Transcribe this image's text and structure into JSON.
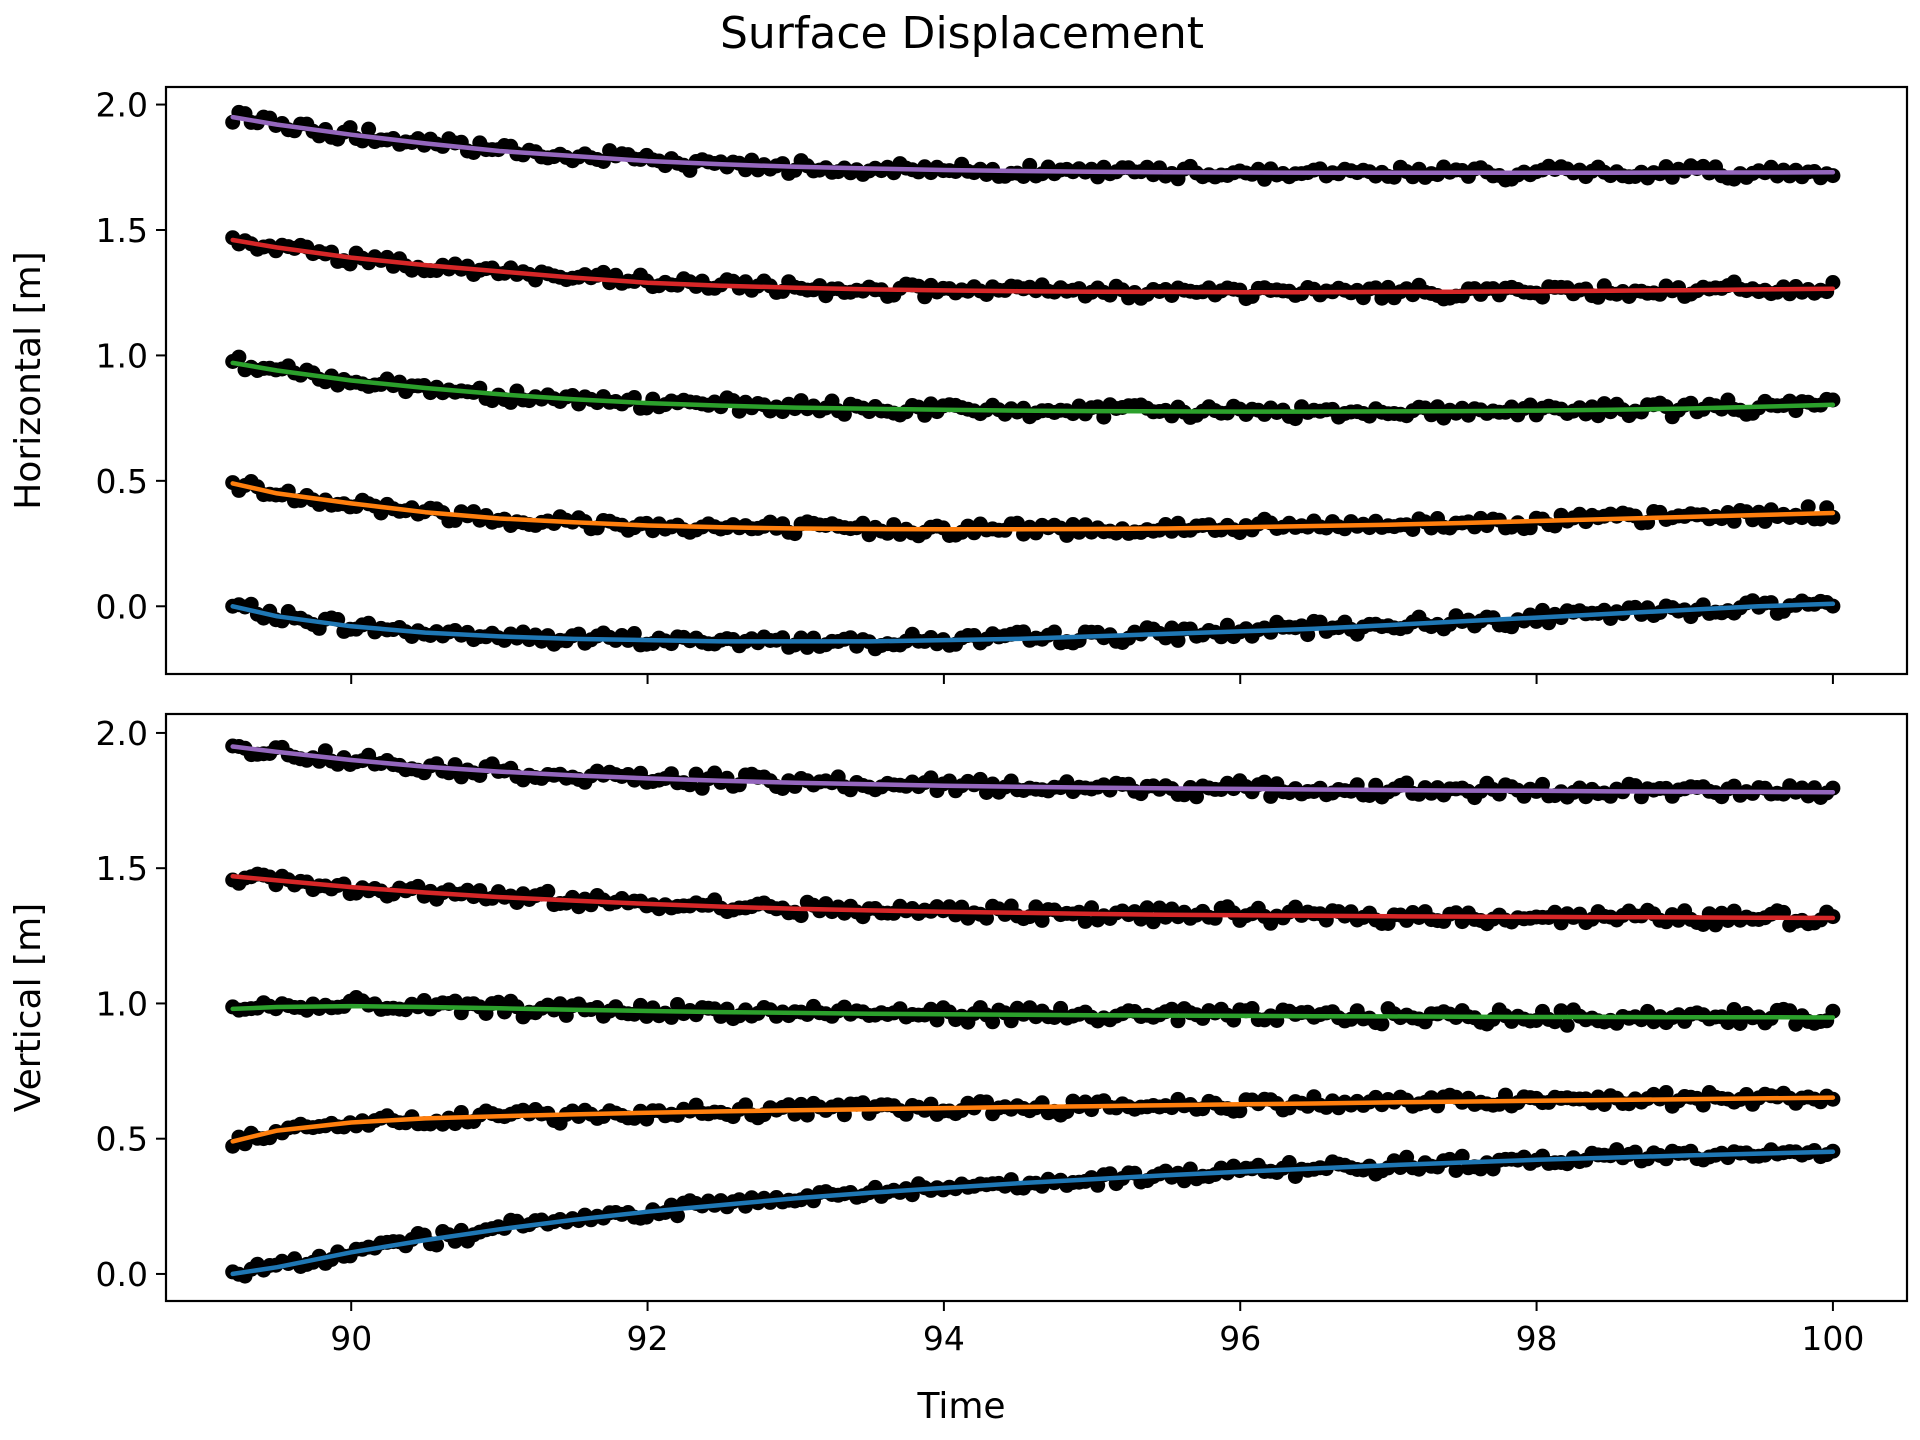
{
  "figure": {
    "title": "Surface Displacement"
  },
  "chart_data": [
    {
      "type": "line",
      "panel": "top",
      "title": "",
      "xlabel": "",
      "ylabel": "Horizontal [m]",
      "xlim": [
        88.75,
        100.5
      ],
      "ylim": [
        -0.27,
        2.07
      ],
      "xticks": [
        90,
        92,
        94,
        96,
        98,
        100
      ],
      "xtick_labels": [
        "",
        "",
        "",
        "",
        "",
        ""
      ],
      "yticks": [
        0.0,
        0.5,
        1.0,
        1.5,
        2.0
      ],
      "ytick_labels": [
        "0.0",
        "0.5",
        "1.0",
        "1.5",
        "2.0"
      ],
      "grid": false,
      "legend": "none",
      "observed_marker_color": "#000000",
      "series": [
        {
          "color": "#1f77b4",
          "x": [
            89.2,
            89.5,
            90,
            90.5,
            91,
            91.5,
            92,
            92.5,
            93,
            93.5,
            94,
            94.5,
            95,
            95.5,
            96,
            96.5,
            97,
            97.5,
            98,
            98.5,
            99,
            99.5,
            100
          ],
          "values": [
            0.0,
            -0.04,
            -0.08,
            -0.105,
            -0.12,
            -0.13,
            -0.135,
            -0.14,
            -0.14,
            -0.14,
            -0.135,
            -0.13,
            -0.12,
            -0.11,
            -0.1,
            -0.09,
            -0.075,
            -0.06,
            -0.045,
            -0.03,
            -0.015,
            0.0,
            0.01
          ]
        },
        {
          "color": "#ff7f0e",
          "x": [
            89.2,
            89.5,
            90,
            90.5,
            91,
            91.5,
            92,
            92.5,
            93,
            93.5,
            94,
            94.5,
            95,
            95.5,
            96,
            96.5,
            97,
            97.5,
            98,
            98.5,
            99,
            99.5,
            100
          ],
          "values": [
            0.49,
            0.45,
            0.41,
            0.375,
            0.35,
            0.335,
            0.322,
            0.315,
            0.31,
            0.308,
            0.307,
            0.307,
            0.308,
            0.31,
            0.315,
            0.32,
            0.325,
            0.332,
            0.34,
            0.348,
            0.356,
            0.364,
            0.372
          ]
        },
        {
          "color": "#2ca02c",
          "x": [
            89.2,
            89.5,
            90,
            90.5,
            91,
            91.5,
            92,
            92.5,
            93,
            93.5,
            94,
            94.5,
            95,
            95.5,
            96,
            96.5,
            97,
            97.5,
            98,
            98.5,
            99,
            99.5,
            100
          ],
          "values": [
            0.97,
            0.94,
            0.9,
            0.87,
            0.845,
            0.825,
            0.81,
            0.8,
            0.792,
            0.787,
            0.783,
            0.78,
            0.778,
            0.777,
            0.776,
            0.776,
            0.777,
            0.778,
            0.78,
            0.783,
            0.788,
            0.795,
            0.803
          ]
        },
        {
          "color": "#d62728",
          "x": [
            89.2,
            89.5,
            90,
            90.5,
            91,
            91.5,
            92,
            92.5,
            93,
            93.5,
            94,
            94.5,
            95,
            95.5,
            96,
            96.5,
            97,
            97.5,
            98,
            98.5,
            99,
            99.5,
            100
          ],
          "values": [
            1.46,
            1.43,
            1.39,
            1.36,
            1.335,
            1.31,
            1.29,
            1.278,
            1.27,
            1.263,
            1.259,
            1.256,
            1.254,
            1.253,
            1.252,
            1.252,
            1.253,
            1.254,
            1.256,
            1.258,
            1.26,
            1.263,
            1.266
          ]
        },
        {
          "color": "#9467bd",
          "x": [
            89.2,
            89.5,
            90,
            90.5,
            91,
            91.5,
            92,
            92.5,
            93,
            93.5,
            94,
            94.5,
            95,
            95.5,
            96,
            96.5,
            97,
            97.5,
            98,
            98.5,
            99,
            99.5,
            100
          ],
          "values": [
            1.95,
            1.92,
            1.88,
            1.845,
            1.815,
            1.795,
            1.775,
            1.762,
            1.752,
            1.745,
            1.739,
            1.735,
            1.732,
            1.73,
            1.729,
            1.728,
            1.728,
            1.728,
            1.728,
            1.728,
            1.729,
            1.729,
            1.73
          ]
        }
      ]
    },
    {
      "type": "line",
      "panel": "bottom",
      "title": "",
      "xlabel": "Time",
      "ylabel": "Vertical [m]",
      "xlim": [
        88.75,
        100.5
      ],
      "ylim": [
        -0.1,
        2.07
      ],
      "xticks": [
        90,
        92,
        94,
        96,
        98,
        100
      ],
      "xtick_labels": [
        "90",
        "92",
        "94",
        "96",
        "98",
        "100"
      ],
      "yticks": [
        0.0,
        0.5,
        1.0,
        1.5,
        2.0
      ],
      "ytick_labels": [
        "0.0",
        "0.5",
        "1.0",
        "1.5",
        "2.0"
      ],
      "grid": false,
      "legend": "none",
      "observed_marker_color": "#000000",
      "series": [
        {
          "color": "#1f77b4",
          "x": [
            89.2,
            89.5,
            90,
            90.5,
            91,
            91.5,
            92,
            92.5,
            93,
            93.5,
            94,
            94.5,
            95,
            95.5,
            96,
            96.5,
            97,
            97.5,
            98,
            98.5,
            99,
            99.5,
            100
          ],
          "values": [
            0.0,
            0.025,
            0.08,
            0.125,
            0.165,
            0.2,
            0.23,
            0.255,
            0.28,
            0.3,
            0.318,
            0.335,
            0.35,
            0.365,
            0.378,
            0.39,
            0.402,
            0.412,
            0.422,
            0.43,
            0.438,
            0.445,
            0.452
          ]
        },
        {
          "color": "#ff7f0e",
          "x": [
            89.2,
            89.5,
            90,
            90.5,
            91,
            91.5,
            92,
            92.5,
            93,
            93.5,
            94,
            94.5,
            95,
            95.5,
            96,
            96.5,
            97,
            97.5,
            98,
            98.5,
            99,
            99.5,
            100
          ],
          "values": [
            0.49,
            0.53,
            0.56,
            0.575,
            0.583,
            0.59,
            0.596,
            0.601,
            0.605,
            0.609,
            0.613,
            0.617,
            0.62,
            0.624,
            0.627,
            0.63,
            0.634,
            0.637,
            0.64,
            0.643,
            0.646,
            0.649,
            0.652
          ]
        },
        {
          "color": "#2ca02c",
          "x": [
            89.2,
            89.5,
            90,
            90.5,
            91,
            91.5,
            92,
            92.5,
            93,
            93.5,
            94,
            94.5,
            95,
            95.5,
            96,
            96.5,
            97,
            97.5,
            98,
            98.5,
            99,
            99.5,
            100
          ],
          "values": [
            0.98,
            0.987,
            0.99,
            0.987,
            0.982,
            0.977,
            0.972,
            0.968,
            0.965,
            0.962,
            0.96,
            0.958,
            0.956,
            0.955,
            0.954,
            0.953,
            0.952,
            0.951,
            0.95,
            0.95,
            0.949,
            0.949,
            0.948
          ]
        },
        {
          "color": "#d62728",
          "x": [
            89.2,
            89.5,
            90,
            90.5,
            91,
            91.5,
            92,
            92.5,
            93,
            93.5,
            94,
            94.5,
            95,
            95.5,
            96,
            96.5,
            97,
            97.5,
            98,
            98.5,
            99,
            99.5,
            100
          ],
          "values": [
            1.47,
            1.455,
            1.43,
            1.41,
            1.393,
            1.38,
            1.368,
            1.358,
            1.35,
            1.344,
            1.339,
            1.335,
            1.331,
            1.328,
            1.326,
            1.324,
            1.322,
            1.321,
            1.32,
            1.319,
            1.318,
            1.317,
            1.316
          ]
        },
        {
          "color": "#9467bd",
          "x": [
            89.2,
            89.5,
            90,
            90.5,
            91,
            91.5,
            92,
            92.5,
            93,
            93.5,
            94,
            94.5,
            95,
            95.5,
            96,
            96.5,
            97,
            97.5,
            98,
            98.5,
            99,
            99.5,
            100
          ],
          "values": [
            1.95,
            1.93,
            1.9,
            1.875,
            1.857,
            1.843,
            1.832,
            1.823,
            1.816,
            1.81,
            1.805,
            1.801,
            1.798,
            1.795,
            1.793,
            1.791,
            1.789,
            1.787,
            1.786,
            1.784,
            1.783,
            1.782,
            1.781
          ]
        }
      ]
    }
  ]
}
